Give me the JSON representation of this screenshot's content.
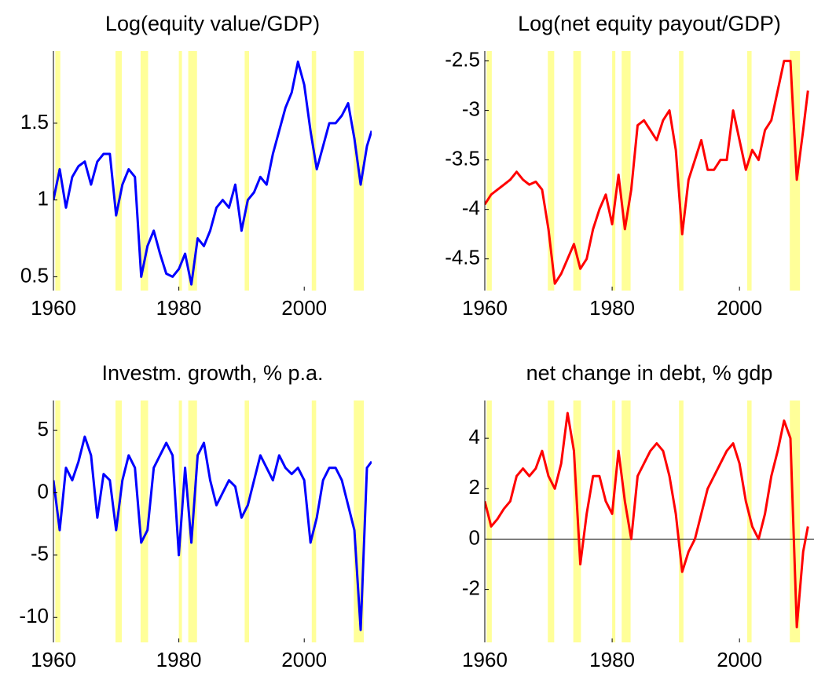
{
  "chart_data": [
    {
      "type": "line",
      "title": "Log(equity value/GDP)",
      "x": [
        1960,
        1961,
        1962,
        1963,
        1964,
        1965,
        1966,
        1967,
        1968,
        1969,
        1970,
        1971,
        1972,
        1973,
        1974,
        1975,
        1976,
        1977,
        1978,
        1979,
        1980,
        1981,
        1982,
        1983,
        1984,
        1985,
        1986,
        1987,
        1988,
        1989,
        1990,
        1991,
        1992,
        1993,
        1994,
        1995,
        1996,
        1997,
        1998,
        1999,
        2000,
        2001,
        2002,
        2003,
        2004,
        2005,
        2006,
        2007,
        2008,
        2009,
        2010,
        2010.75
      ],
      "series": [
        {
          "color": "#0000ff",
          "values": [
            1.0,
            1.2,
            0.95,
            1.15,
            1.22,
            1.25,
            1.1,
            1.25,
            1.3,
            1.3,
            0.9,
            1.1,
            1.2,
            1.15,
            0.5,
            0.7,
            0.8,
            0.65,
            0.52,
            0.5,
            0.55,
            0.65,
            0.45,
            0.75,
            0.7,
            0.8,
            0.95,
            1.0,
            0.95,
            1.1,
            0.8,
            1.0,
            1.05,
            1.15,
            1.1,
            1.3,
            1.45,
            1.6,
            1.7,
            1.9,
            1.75,
            1.45,
            1.2,
            1.35,
            1.5,
            1.5,
            1.55,
            1.63,
            1.4,
            1.1,
            1.35,
            1.45
          ]
        }
      ],
      "xlim": [
        1960,
        2010.75
      ],
      "xticks": [
        1960,
        1980,
        2000
      ],
      "ylim": [
        0.41,
        1.97
      ],
      "yticks": [
        0.5,
        1,
        1.5
      ],
      "shaded_regions": [
        [
          1960.3,
          1961.1
        ],
        [
          1969.9,
          1970.9
        ],
        [
          1973.9,
          1975.1
        ],
        [
          1980.0,
          1980.5
        ],
        [
          1981.5,
          1982.9
        ],
        [
          1990.5,
          1991.2
        ],
        [
          2001.2,
          2001.9
        ],
        [
          2007.9,
          2009.5
        ]
      ],
      "shade_color": "#ffff99"
    },
    {
      "type": "line",
      "title": "Log(net equity payout/GDP)",
      "x": [
        1960,
        1961,
        1962,
        1963,
        1964,
        1965,
        1966,
        1967,
        1968,
        1969,
        1970,
        1971,
        1972,
        1973,
        1974,
        1975,
        1976,
        1977,
        1978,
        1979,
        1980,
        1981,
        1982,
        1983,
        1984,
        1985,
        1986,
        1987,
        1988,
        1989,
        1990,
        1991,
        1992,
        1993,
        1994,
        1995,
        1996,
        1997,
        1998,
        1999,
        2000,
        2001,
        2002,
        2003,
        2004,
        2005,
        2006,
        2007,
        2008,
        2009,
        2010,
        2010.75
      ],
      "series": [
        {
          "color": "#ff0000",
          "values": [
            -3.95,
            -3.85,
            -3.8,
            -3.75,
            -3.7,
            -3.62,
            -3.7,
            -3.75,
            -3.72,
            -3.8,
            -4.2,
            -4.75,
            -4.65,
            -4.5,
            -4.35,
            -4.6,
            -4.5,
            -4.2,
            -4.0,
            -3.85,
            -4.15,
            -3.65,
            -4.2,
            -3.8,
            -3.15,
            -3.1,
            -3.2,
            -3.3,
            -3.1,
            -3.0,
            -3.4,
            -4.25,
            -3.7,
            -3.5,
            -3.3,
            -3.6,
            -3.6,
            -3.5,
            -3.5,
            -3.0,
            -3.3,
            -3.6,
            -3.4,
            -3.5,
            -3.2,
            -3.1,
            -2.8,
            -2.5,
            -2.5,
            -3.7,
            -3.2,
            -2.8
          ]
        }
      ],
      "xlim": [
        1960,
        2011.7
      ],
      "xticks": [
        1960,
        1980,
        2000
      ],
      "ylim": [
        -4.82,
        -2.4
      ],
      "yticks": [
        -4.5,
        -4,
        -3.5,
        -3,
        -2.5
      ],
      "shaded_regions": [
        [
          1960.3,
          1961.1
        ],
        [
          1969.9,
          1970.9
        ],
        [
          1973.9,
          1975.1
        ],
        [
          1980.0,
          1980.5
        ],
        [
          1981.5,
          1982.9
        ],
        [
          1990.5,
          1991.2
        ],
        [
          2001.2,
          2001.9
        ],
        [
          2007.9,
          2009.5
        ]
      ],
      "shade_color": "#ffff99"
    },
    {
      "type": "line",
      "title": "Investm. growth, % p.a.",
      "x": [
        1960,
        1961,
        1962,
        1963,
        1964,
        1965,
        1966,
        1967,
        1968,
        1969,
        1970,
        1971,
        1972,
        1973,
        1974,
        1975,
        1976,
        1977,
        1978,
        1979,
        1980,
        1981,
        1982,
        1983,
        1984,
        1985,
        1986,
        1987,
        1988,
        1989,
        1990,
        1991,
        1992,
        1993,
        1994,
        1995,
        1996,
        1997,
        1998,
        1999,
        2000,
        2001,
        2002,
        2003,
        2004,
        2005,
        2006,
        2007,
        2008,
        2009,
        2010,
        2010.75
      ],
      "series": [
        {
          "color": "#0000ff",
          "values": [
            1,
            -3,
            2,
            1,
            2.5,
            4.5,
            3,
            -2,
            1.5,
            1,
            -3,
            1,
            3,
            2,
            -4,
            -3,
            2,
            3,
            4,
            3,
            -5,
            2,
            -4,
            3,
            4,
            1,
            -1,
            0,
            1,
            0.5,
            -2,
            -1,
            1,
            3,
            2,
            1,
            3,
            2,
            1.5,
            2,
            1,
            -4,
            -2,
            1,
            2,
            2,
            1,
            -1,
            -3,
            -11,
            2,
            2.5
          ]
        }
      ],
      "xlim": [
        1960,
        2010.75
      ],
      "xticks": [
        1960,
        1980,
        2000
      ],
      "ylim": [
        -12,
        7.4
      ],
      "yticks": [
        -10,
        -5,
        0,
        5
      ],
      "shaded_regions": [
        [
          1960.3,
          1961.1
        ],
        [
          1969.9,
          1970.9
        ],
        [
          1973.9,
          1975.1
        ],
        [
          1980.0,
          1980.5
        ],
        [
          1981.5,
          1982.9
        ],
        [
          1990.5,
          1991.2
        ],
        [
          2001.2,
          2001.9
        ],
        [
          2007.9,
          2009.5
        ]
      ],
      "shade_color": "#ffff99"
    },
    {
      "type": "line",
      "title": "net change in debt, % gdp",
      "x": [
        1960,
        1961,
        1962,
        1963,
        1964,
        1965,
        1966,
        1967,
        1968,
        1969,
        1970,
        1971,
        1972,
        1973,
        1974,
        1975,
        1976,
        1977,
        1978,
        1979,
        1980,
        1981,
        1982,
        1983,
        1984,
        1985,
        1986,
        1987,
        1988,
        1989,
        1990,
        1991,
        1992,
        1993,
        1994,
        1995,
        1996,
        1997,
        1998,
        1999,
        2000,
        2001,
        2002,
        2003,
        2004,
        2005,
        2006,
        2007,
        2008,
        2009,
        2010,
        2010.75
      ],
      "series": [
        {
          "color": "#ff0000",
          "values": [
            1.5,
            0.5,
            0.8,
            1.2,
            1.5,
            2.5,
            2.8,
            2.5,
            2.8,
            3.5,
            2.5,
            2,
            3,
            5,
            3.5,
            -1,
            1,
            2.5,
            2.5,
            1.5,
            1,
            3.5,
            1.5,
            0,
            2.5,
            3,
            3.5,
            3.8,
            3.5,
            2.5,
            1,
            -1.3,
            -0.5,
            0,
            1,
            2,
            2.5,
            3,
            3.5,
            3.8,
            3,
            1.5,
            0.5,
            0,
            1,
            2.5,
            3.5,
            4.7,
            4,
            -3.5,
            -0.5,
            0.5
          ]
        }
      ],
      "xlim": [
        1960,
        2011.7
      ],
      "xticks": [
        1960,
        1980,
        2000
      ],
      "ylim": [
        -4.1,
        5.5
      ],
      "yticks": [
        -2,
        0,
        2,
        4
      ],
      "hline": 0,
      "shaded_regions": [
        [
          1960.3,
          1961.1
        ],
        [
          1969.9,
          1970.9
        ],
        [
          1973.9,
          1975.1
        ],
        [
          1980.0,
          1980.5
        ],
        [
          1981.5,
          1982.9
        ],
        [
          1990.5,
          1991.2
        ],
        [
          2001.2,
          2001.9
        ],
        [
          2007.9,
          2009.5
        ]
      ],
      "shade_color": "#ffff99"
    }
  ]
}
